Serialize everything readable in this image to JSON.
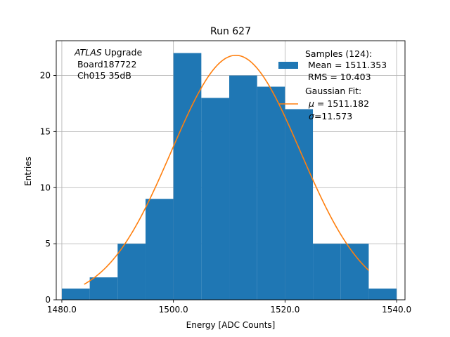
{
  "chart_data": {
    "type": "bar",
    "title": "Run 627",
    "xlabel": "Energy [ADC Counts]",
    "ylabel": "Entries",
    "xlim": [
      1479,
      1541.5
    ],
    "ylim": [
      0,
      23.1
    ],
    "grid": true,
    "x_ticks": [
      1480,
      1500,
      1520,
      1540
    ],
    "x_tick_labels": [
      "1480.0",
      "1500.0",
      "1520.0",
      "1540.0"
    ],
    "y_ticks": [
      0,
      5,
      10,
      15,
      20
    ],
    "y_tick_labels": [
      "0",
      "5",
      "10",
      "15",
      "20"
    ],
    "bins": [
      {
        "x0": 1480,
        "x1": 1485,
        "count": 1
      },
      {
        "x0": 1485,
        "x1": 1490,
        "count": 2
      },
      {
        "x0": 1490,
        "x1": 1495,
        "count": 5
      },
      {
        "x0": 1495,
        "x1": 1500,
        "count": 9
      },
      {
        "x0": 1500,
        "x1": 1505,
        "count": 22
      },
      {
        "x0": 1505,
        "x1": 1510,
        "count": 18
      },
      {
        "x0": 1510,
        "x1": 1515,
        "count": 20
      },
      {
        "x0": 1515,
        "x1": 1520,
        "count": 19
      },
      {
        "x0": 1520,
        "x1": 1525,
        "count": 17
      },
      {
        "x0": 1525,
        "x1": 1530,
        "count": 5
      },
      {
        "x0": 1530,
        "x1": 1535,
        "count": 5
      },
      {
        "x0": 1535,
        "x1": 1540,
        "count": 1
      }
    ],
    "fit": {
      "mu": 1511.182,
      "sigma": 11.573,
      "amplitude": 21.8,
      "x_range": [
        1484,
        1535
      ]
    },
    "colors": {
      "histogram": "#1f77b4",
      "fit": "#ff7f0e",
      "grid": "#b0b0b0"
    },
    "annotation": {
      "italic": "ATLAS",
      "rest": " Upgrade",
      "line2": " Board187722",
      "line3": " Ch015 35dB"
    },
    "legend": {
      "placement": "top-right",
      "hist_label": [
        "Samples (124):",
        " Mean = 1511.353",
        " RMS = 10.403"
      ],
      "fit_label": [
        "Gaussian Fit:",
        "μ",
        " = 1511.182",
        "σ",
        "=11.573"
      ]
    }
  }
}
